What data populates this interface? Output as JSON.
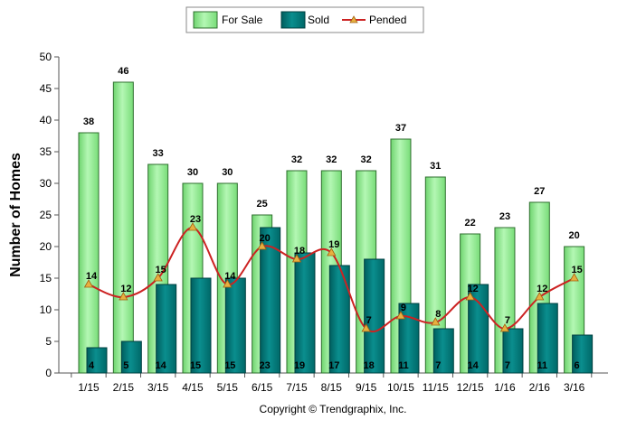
{
  "chart_data": {
    "type": "bar",
    "categories": [
      "1/15",
      "2/15",
      "3/15",
      "4/15",
      "5/15",
      "6/15",
      "7/15",
      "8/15",
      "9/15",
      "10/15",
      "11/15",
      "12/15",
      "1/16",
      "2/16",
      "3/16"
    ],
    "series": [
      {
        "name": "For Sale",
        "type": "bar",
        "color": "#90ee90",
        "values": [
          38,
          46,
          33,
          30,
          30,
          25,
          32,
          32,
          32,
          37,
          31,
          22,
          23,
          27,
          20
        ]
      },
      {
        "name": "Sold",
        "type": "bar",
        "color": "#007b7b",
        "values": [
          4,
          5,
          14,
          15,
          15,
          23,
          19,
          17,
          18,
          11,
          7,
          14,
          7,
          11,
          6
        ]
      },
      {
        "name": "Pended",
        "type": "line",
        "color": "#cc2222",
        "marker_color": "#e8b040",
        "values": [
          14,
          12,
          15,
          23,
          14,
          20,
          18,
          19,
          7,
          9,
          8,
          12,
          7,
          12,
          15
        ]
      }
    ],
    "title": "",
    "xlabel": "",
    "ylabel": "Number of Homes",
    "ylim": [
      0,
      50
    ],
    "yticks": [
      0,
      5,
      10,
      15,
      20,
      25,
      30,
      35,
      40,
      45,
      50
    ],
    "grid": false,
    "legend_position": "top-center"
  },
  "copyright": "Copyright © Trendgraphix, Inc."
}
